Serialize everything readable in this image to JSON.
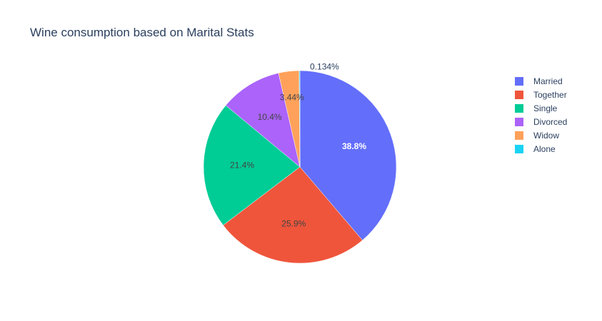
{
  "chart_data": {
    "type": "pie",
    "title": "Wine consumption based on Marital Stats",
    "categories": [
      "Married",
      "Together",
      "Single",
      "Divorced",
      "Widow",
      "Alone"
    ],
    "values": [
      38.8,
      25.9,
      21.4,
      10.4,
      3.44,
      0.134
    ],
    "value_labels": [
      "38.8%",
      "25.9%",
      "21.4%",
      "10.4%",
      "3.44%",
      "0.134%"
    ],
    "colors": [
      "#636efa",
      "#EF553B",
      "#00cc96",
      "#ab63fa",
      "#FFA15A",
      "#19d3f3"
    ],
    "direction": "clockwise",
    "legend_position": "top-right"
  }
}
